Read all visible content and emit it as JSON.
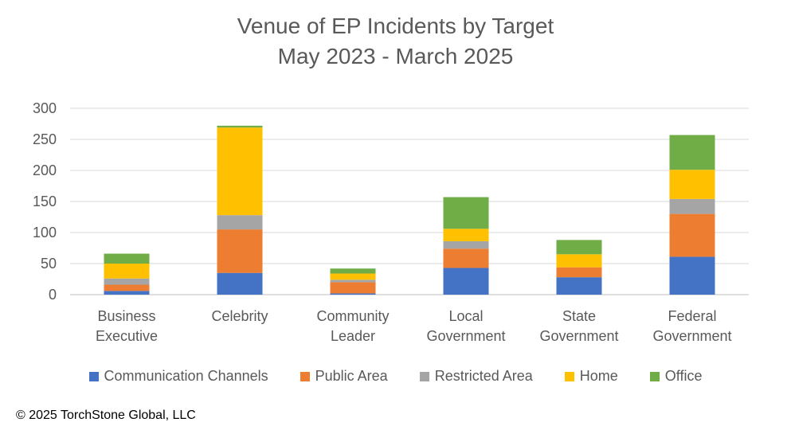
{
  "chart_data": {
    "type": "bar",
    "stacked": true,
    "title": "Venue of EP Incidents by Target",
    "subtitle": "May 2023 - March 2025",
    "categories": [
      [
        "Business",
        "Executive"
      ],
      [
        "Celebrity"
      ],
      [
        "Community",
        "Leader"
      ],
      [
        "Local",
        "Government"
      ],
      [
        "State",
        "Government"
      ],
      [
        "Federal",
        "Government"
      ]
    ],
    "series": [
      {
        "name": "Communication Channels",
        "color": "#4472C4",
        "values": [
          6,
          35,
          2,
          43,
          28,
          61
        ]
      },
      {
        "name": "Public Area",
        "color": "#ED7D31",
        "values": [
          10,
          70,
          18,
          31,
          16,
          69
        ]
      },
      {
        "name": "Restricted Area",
        "color": "#A5A5A5",
        "values": [
          10,
          23,
          4,
          12,
          0,
          24
        ]
      },
      {
        "name": "Home",
        "color": "#FFC000",
        "values": [
          24,
          141,
          10,
          20,
          21,
          47
        ]
      },
      {
        "name": "Office",
        "color": "#70AD47",
        "values": [
          16,
          3,
          8,
          51,
          23,
          56
        ]
      }
    ],
    "yticks": [
      0,
      50,
      100,
      150,
      200,
      250,
      300
    ],
    "ylim": [
      0,
      300
    ],
    "grid": true,
    "legend_position": "bottom"
  },
  "copyright": "© 2025 TorchStone Global, LLC"
}
